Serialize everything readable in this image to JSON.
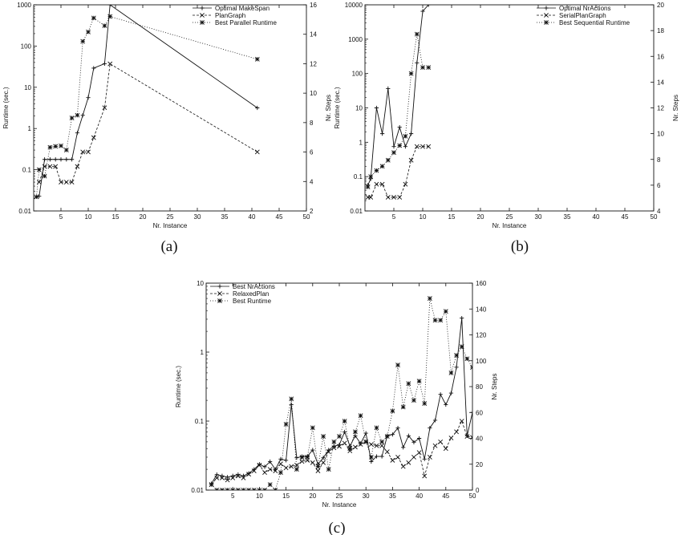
{
  "chart_data": [
    {
      "type": "line",
      "caption": "(a)",
      "xlabel": "Nr. Instance",
      "ylabel_left": "Runtime (sec.)",
      "ylabel_right": "Nr. Steps",
      "xlim": [
        0,
        50
      ],
      "xticks": [
        5,
        10,
        15,
        20,
        25,
        30,
        35,
        40,
        45,
        50
      ],
      "ylim_left": [
        0.01,
        1000
      ],
      "yscale_left": "log",
      "yticks_left": [
        0.01,
        0.1,
        1,
        10,
        100,
        1000
      ],
      "yticklabels_left": [
        "0.01",
        "0.1",
        "1",
        "10",
        "100",
        "1000"
      ],
      "ylim_right": [
        2,
        16
      ],
      "yticks_right": [
        2,
        4,
        6,
        8,
        10,
        12,
        14,
        16
      ],
      "legend_position": "top-right",
      "series": [
        {
          "name": "Optimal MakeSpan",
          "axis": "right",
          "style": "solid",
          "marker": "plus",
          "x": [
            1,
            2,
            3,
            4,
            5,
            6,
            7,
            8,
            9,
            10,
            11,
            13,
            14,
            41
          ],
          "y": [
            3,
            5.5,
            5.5,
            5.5,
            5.5,
            5.5,
            5.5,
            7.3,
            8.5,
            9.7,
            11.7,
            12,
            16,
            9
          ]
        },
        {
          "name": "PlanGraph",
          "axis": "left",
          "style": "dashed",
          "marker": "x",
          "x": [
            1,
            2,
            3,
            4,
            5,
            6,
            7,
            8,
            9,
            10,
            11,
            13,
            14,
            41
          ],
          "y": [
            0.05,
            0.12,
            0.12,
            0.12,
            0.05,
            0.05,
            0.05,
            0.12,
            0.27,
            0.27,
            0.6,
            3.2,
            37,
            0.27
          ]
        },
        {
          "name": "Best Parallel Runtime",
          "axis": "left",
          "style": "dotted",
          "marker": "box",
          "x": [
            0.5,
            1,
            2,
            3,
            4,
            5,
            6,
            7,
            8,
            9,
            10,
            11,
            13,
            14,
            41
          ],
          "y": [
            0.022,
            0.1,
            0.07,
            0.35,
            0.37,
            0.38,
            0.3,
            1.8,
            2.1,
            130,
            220,
            480,
            310,
            520,
            48
          ]
        }
      ]
    },
    {
      "type": "line",
      "caption": "(b)",
      "xlabel": "Nr. Instance",
      "ylabel_left": "Runtime (sec.)",
      "ylabel_right": "Nr. Steps",
      "xlim": [
        0,
        50
      ],
      "xticks": [
        5,
        10,
        15,
        20,
        25,
        30,
        35,
        40,
        45,
        50
      ],
      "ylim_left": [
        0.01,
        10000
      ],
      "yscale_left": "log",
      "yticks_left": [
        0.01,
        0.1,
        1,
        10,
        100,
        1000,
        10000
      ],
      "yticklabels_left": [
        "0.01",
        "0.1",
        "1",
        "10",
        "100",
        "1000",
        "10000"
      ],
      "ylim_right": [
        4,
        20
      ],
      "yticks_right": [
        4,
        6,
        8,
        10,
        12,
        14,
        16,
        18,
        20
      ],
      "legend_position": "top-right",
      "series": [
        {
          "name": "Optimal NrActions",
          "axis": "right",
          "style": "solid",
          "marker": "plus",
          "x": [
            0.5,
            1,
            2,
            3,
            4,
            5,
            6,
            7,
            8,
            9,
            10,
            11
          ],
          "y": [
            6,
            6.5,
            12,
            10,
            13.5,
            9,
            10.5,
            9,
            10,
            15.5,
            19.5,
            20
          ]
        },
        {
          "name": "SerialPlanGraph",
          "axis": "left",
          "style": "dashed",
          "marker": "x",
          "x": [
            0.5,
            1,
            2,
            3,
            4,
            5,
            6,
            7,
            8,
            9,
            10,
            11
          ],
          "y": [
            0.025,
            0.025,
            0.06,
            0.06,
            0.025,
            0.025,
            0.025,
            0.06,
            0.3,
            0.75,
            0.75,
            0.75
          ]
        },
        {
          "name": "Best Sequential Runtime",
          "axis": "left",
          "style": "dotted",
          "marker": "box",
          "x": [
            0.5,
            1,
            2,
            3,
            4,
            5,
            6,
            7,
            8,
            9,
            10,
            11
          ],
          "y": [
            0.05,
            0.1,
            0.15,
            0.2,
            0.3,
            0.5,
            0.8,
            1.5,
            100,
            1400,
            150,
            150
          ]
        }
      ]
    },
    {
      "type": "line",
      "caption": "(c)",
      "xlabel": "Nr. Instance",
      "ylabel_left": "Runtime (sec.)",
      "ylabel_right": "Nr. Steps",
      "xlim": [
        0,
        50
      ],
      "xticks": [
        5,
        10,
        15,
        20,
        25,
        30,
        35,
        40,
        45,
        50
      ],
      "ylim_left": [
        0.01,
        10
      ],
      "yscale_left": "log",
      "yticks_left": [
        0.01,
        0.1,
        1,
        10
      ],
      "yticklabels_left": [
        "0.01",
        "0.1",
        "1",
        "10"
      ],
      "ylim_right": [
        0,
        160
      ],
      "yticks_right": [
        0,
        20,
        40,
        60,
        80,
        100,
        120,
        140,
        160
      ],
      "legend_position": "top-left",
      "series": [
        {
          "name": "Best NrActions",
          "axis": "right",
          "style": "solid",
          "marker": "plus",
          "x": [
            1,
            2,
            3,
            4,
            5,
            6,
            7,
            8,
            9,
            10,
            11,
            12,
            13,
            14,
            15,
            16,
            17,
            18,
            19,
            20,
            21,
            22,
            23,
            24,
            25,
            26,
            27,
            28,
            29,
            30,
            31,
            32,
            33,
            34,
            35,
            36,
            37,
            38,
            39,
            40,
            41,
            42,
            43,
            44,
            45,
            46,
            47,
            48,
            49,
            50
          ],
          "y": [
            5,
            12,
            11,
            10,
            11,
            12,
            11,
            13,
            16,
            20,
            18,
            22,
            16,
            24,
            23,
            66,
            25,
            26,
            26,
            31,
            20,
            25,
            31,
            34,
            35,
            45,
            34,
            42,
            36,
            44,
            22,
            26,
            26,
            42,
            43,
            48,
            33,
            42,
            37,
            40,
            24,
            48,
            54,
            74,
            66,
            75,
            95,
            133,
            42,
            60
          ]
        },
        {
          "name": "RelaxedPlan",
          "axis": "left",
          "style": "dashed",
          "marker": "x",
          "x": [
            1,
            2,
            3,
            4,
            5,
            6,
            7,
            8,
            9,
            10,
            11,
            12,
            13,
            14,
            15,
            16,
            17,
            18,
            19,
            20,
            21,
            22,
            23,
            24,
            25,
            26,
            27,
            28,
            29,
            30,
            31,
            32,
            33,
            34,
            35,
            36,
            37,
            38,
            39,
            40,
            41,
            42,
            43,
            44,
            45,
            46,
            47,
            48,
            49,
            50
          ],
          "y": [
            0.012,
            0.015,
            0.015,
            0.014,
            0.015,
            0.016,
            0.015,
            0.017,
            0.019,
            0.023,
            0.018,
            0.02,
            0.019,
            0.024,
            0.021,
            0.022,
            0.023,
            0.026,
            0.027,
            0.025,
            0.019,
            0.025,
            0.036,
            0.041,
            0.043,
            0.048,
            0.037,
            0.042,
            0.046,
            0.05,
            0.046,
            0.044,
            0.044,
            0.036,
            0.027,
            0.03,
            0.022,
            0.025,
            0.03,
            0.035,
            0.016,
            0.03,
            0.044,
            0.05,
            0.04,
            0.057,
            0.07,
            0.1,
            0.06,
            0.058
          ]
        },
        {
          "name": "Best Runtime",
          "axis": "left",
          "style": "dotted",
          "marker": "box",
          "x": [
            1,
            2,
            3,
            4,
            5,
            6,
            7,
            8,
            9,
            10,
            11,
            12,
            13,
            14,
            15,
            16,
            17,
            18,
            19,
            20,
            21,
            22,
            23,
            24,
            25,
            26,
            27,
            28,
            29,
            30,
            31,
            32,
            33,
            34,
            35,
            36,
            37,
            38,
            39,
            40,
            41,
            42,
            43,
            44,
            45,
            46,
            47,
            48,
            49,
            50
          ],
          "y": [
            0.012,
            0.01,
            0.01,
            0.01,
            0.01,
            0.01,
            0.01,
            0.01,
            0.01,
            0.01,
            0.01,
            0.012,
            0.01,
            0.018,
            0.09,
            0.21,
            0.02,
            0.03,
            0.03,
            0.08,
            0.022,
            0.06,
            0.02,
            0.05,
            0.06,
            0.1,
            0.04,
            0.07,
            0.12,
            0.05,
            0.03,
            0.08,
            0.05,
            0.06,
            0.14,
            0.65,
            0.16,
            0.35,
            0.2,
            0.38,
            0.18,
            6,
            2.9,
            2.9,
            3.9,
            0.5,
            0.9,
            1.2,
            0.8,
            0.6
          ]
        }
      ]
    }
  ]
}
